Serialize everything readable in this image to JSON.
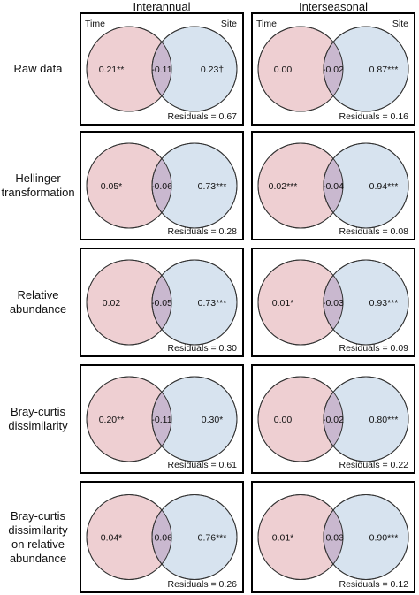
{
  "columns": [
    "Interannual",
    "Interseasonal"
  ],
  "set_labels": {
    "left": "Time",
    "right": "Site"
  },
  "rows": [
    {
      "label_lines": [
        "Raw data"
      ],
      "panels": [
        {
          "left": "0.21**",
          "overlap": "-0.11",
          "right": "0.23†",
          "residuals": "Residuals = 0.67",
          "show_set_labels": true
        },
        {
          "left": "0.00",
          "overlap": "-0.02",
          "right": "0.87***",
          "residuals": "Residuals = 0.16",
          "show_set_labels": true
        }
      ]
    },
    {
      "label_lines": [
        "Hellinger",
        "transformation"
      ],
      "panels": [
        {
          "left": "0.05*",
          "overlap": "-0.06",
          "right": "0.73***",
          "residuals": "Residuals = 0.28"
        },
        {
          "left": "0.02***",
          "overlap": "-0.04",
          "right": "0.94***",
          "residuals": "Residuals = 0.08"
        }
      ]
    },
    {
      "label_lines": [
        "Relative",
        "abundance"
      ],
      "panels": [
        {
          "left": "0.02",
          "overlap": "-0.05",
          "right": "0.73***",
          "residuals": "Residuals = 0.30"
        },
        {
          "left": "0.01*",
          "overlap": "-0.03",
          "right": "0.93***",
          "residuals": "Residuals = 0.09"
        }
      ]
    },
    {
      "label_lines": [
        "Bray-curtis",
        "dissimilarity"
      ],
      "panels": [
        {
          "left": "0.20**",
          "overlap": "-0.11",
          "right": "0.30*",
          "residuals": "Residuals = 0.61"
        },
        {
          "left": "0.00",
          "overlap": "-0.02",
          "right": "0.80***",
          "residuals": "Residuals = 0.22"
        }
      ]
    },
    {
      "label_lines": [
        "Bray-curtis",
        "dissimilarity",
        "on relative",
        "abundance"
      ],
      "panels": [
        {
          "left": "0.04*",
          "overlap": "-0.06",
          "right": "0.76***",
          "residuals": "Residuals = 0.26"
        },
        {
          "left": "0.01*",
          "overlap": "-0.03",
          "right": "0.90***",
          "residuals": "Residuals = 0.12"
        }
      ]
    }
  ],
  "colors": {
    "time_fill": "#eecfd2",
    "site_fill": "#d7e3ef",
    "overlap_fill": "#c9b8cf",
    "outline": "#333333"
  }
}
